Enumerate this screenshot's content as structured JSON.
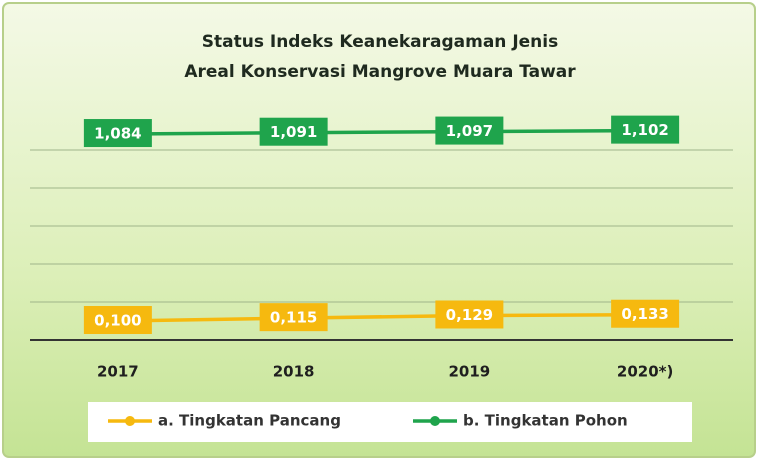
{
  "chart_data": {
    "type": "line",
    "title": [
      "Status Indeks Keanekaragaman Jenis",
      "Areal Konservasi Mangrove Muara Tawar"
    ],
    "categories": [
      "2017",
      "2018",
      "2019",
      "2020*)"
    ],
    "series": [
      {
        "name": "a. Tingkatan Pancang",
        "color": "#f6b90f",
        "values": [
          0.1,
          0.115,
          0.129,
          0.133
        ],
        "value_labels": [
          "0,100",
          "0,115",
          "0,129",
          "0,133"
        ]
      },
      {
        "name": "b. Tingkatan Pohon",
        "color": "#1fa44c",
        "values": [
          1.084,
          1.091,
          1.097,
          1.102
        ],
        "value_labels": [
          "1,084",
          "1,091",
          "1,097",
          "1,102"
        ]
      }
    ],
    "ylim": [
      0,
      1.2
    ],
    "yticks": [
      0,
      0.2,
      0.4,
      0.6,
      0.8,
      1.0
    ],
    "grid": true,
    "legend": "bottom"
  }
}
